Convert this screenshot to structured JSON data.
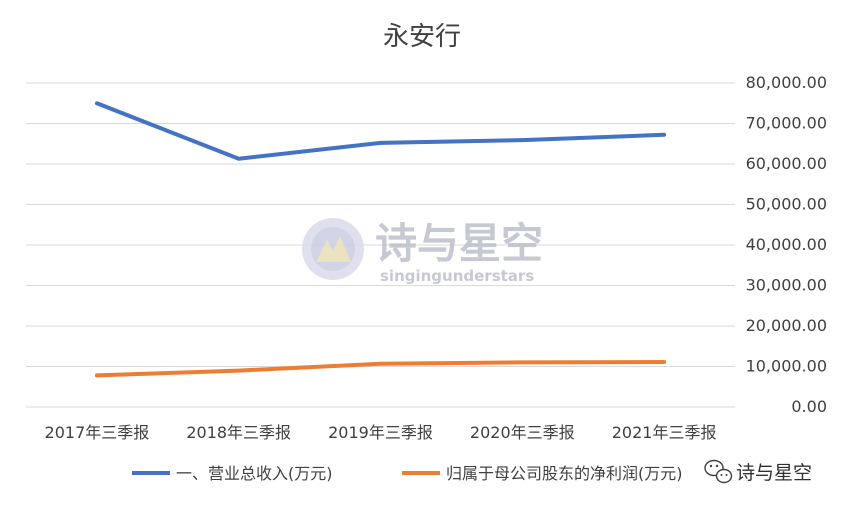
{
  "chart_data": {
    "type": "line",
    "title": "永安行",
    "categories": [
      "2017年三季报",
      "2018年三季报",
      "2019年三季报",
      "2020年三季报",
      "2021年三季报"
    ],
    "series": [
      {
        "name": "一、营业总收入(万元)",
        "color": "#4472c4",
        "values": [
          75000,
          61300,
          65200,
          65900,
          67200
        ]
      },
      {
        "name": "归属于母公司股东的净利润(万元)",
        "color": "#ed7d31",
        "values": [
          7800,
          9000,
          10700,
          11000,
          11100
        ]
      }
    ],
    "ylim": [
      0,
      80000
    ],
    "yticks": [
      "0.00",
      "10,000.00",
      "20,000.00",
      "30,000.00",
      "40,000.00",
      "50,000.00",
      "60,000.00",
      "70,000.00",
      "80,000.00"
    ],
    "grid": true,
    "y_axis_side": "right",
    "legend_position": "bottom"
  },
  "watermark": {
    "cn": "诗与星空",
    "en": "singingunderstars",
    "logo_icon": "sun-logo-icon"
  },
  "corner_badge": {
    "icon": "wechat-icon",
    "text": "诗与星空"
  }
}
